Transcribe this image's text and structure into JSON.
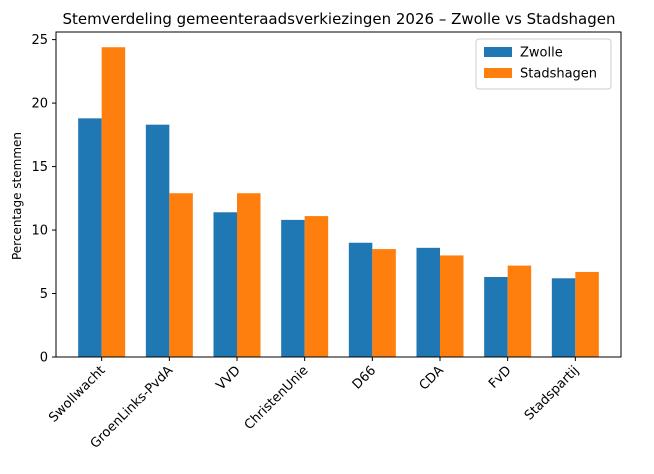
{
  "chart_data": {
    "type": "bar",
    "title": "Stemverdeling gemeenteraadsverkiezingen 2026 – Zwolle vs Stadshagen",
    "xlabel": "",
    "ylabel": "Percentage stemmen",
    "categories": [
      "Swollwacht",
      "GroenLinks-PvdA",
      "VVD",
      "ChristenUnie",
      "D66",
      "CDA",
      "FvD",
      "Stadspartij"
    ],
    "series": [
      {
        "name": "Zwolle",
        "color": "#1f77b4",
        "values": [
          18.8,
          18.3,
          11.4,
          10.8,
          9.0,
          8.6,
          6.3,
          6.2
        ]
      },
      {
        "name": "Stadshagen",
        "color": "#ff7f0e",
        "values": [
          24.4,
          12.9,
          12.9,
          11.1,
          8.5,
          8.0,
          7.2,
          6.7
        ]
      }
    ],
    "ylim": [
      0,
      25.6
    ],
    "yticks": [
      0,
      5,
      10,
      15,
      20,
      25
    ],
    "grid": false,
    "legend_position": "top-right"
  }
}
